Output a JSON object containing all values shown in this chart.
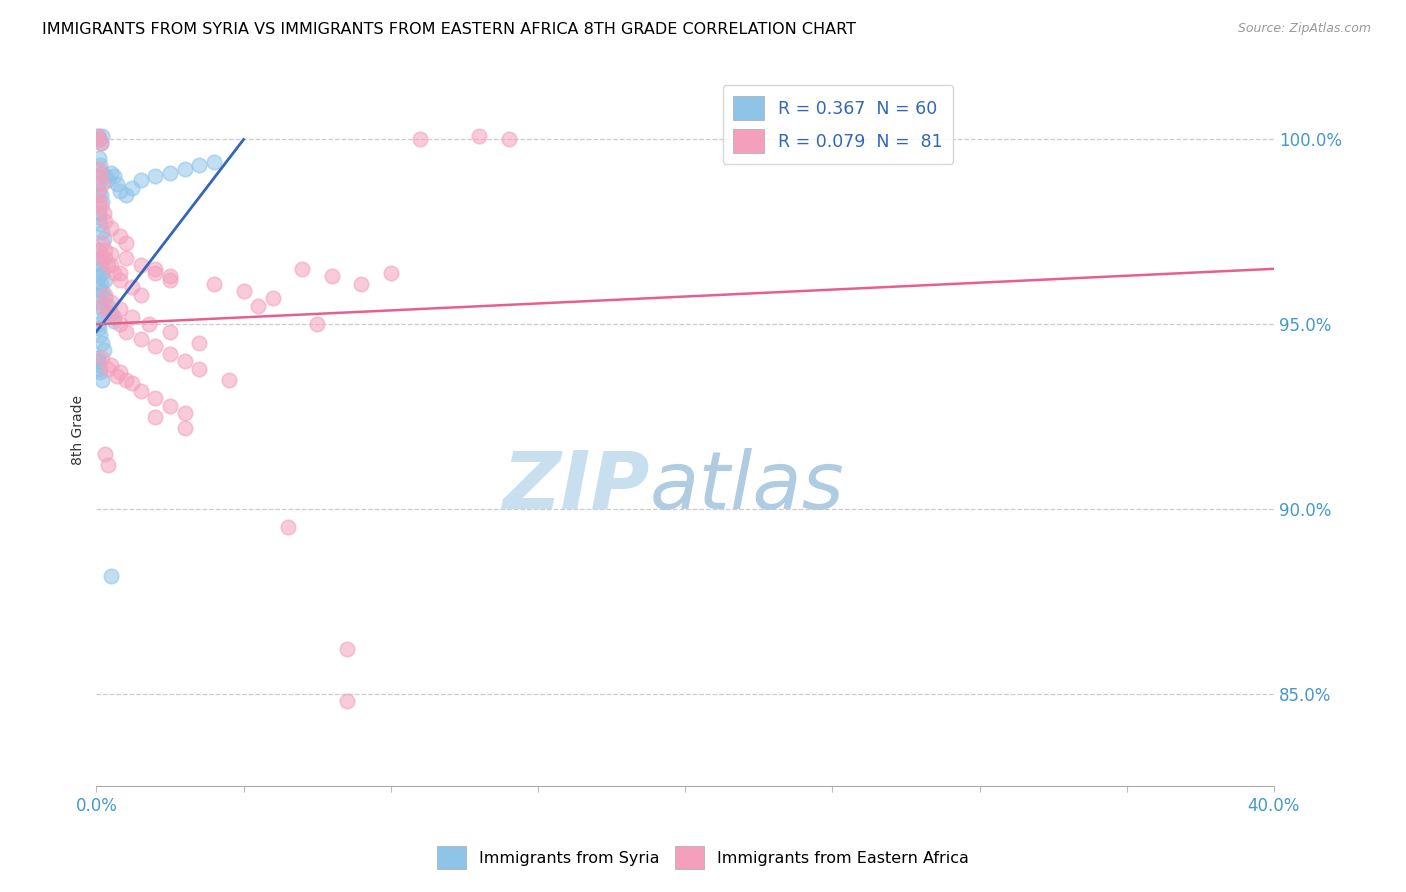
{
  "title": "IMMIGRANTS FROM SYRIA VS IMMIGRANTS FROM EASTERN AFRICA 8TH GRADE CORRELATION CHART",
  "source": "Source: ZipAtlas.com",
  "ylabel_label": "8th Grade",
  "right_yticks": [
    100.0,
    95.0,
    90.0,
    85.0
  ],
  "right_ytick_labels": [
    "100.0%",
    "95.0%",
    "90.0%",
    "85.0%"
  ],
  "xlim": [
    0.0,
    40.0
  ],
  "ylim": [
    82.5,
    101.8
  ],
  "legend_text_1": "R = 0.367  N = 60",
  "legend_text_2": "R = 0.079  N =  81",
  "syria_color": "#8ec4e8",
  "eastern_africa_color": "#f4a0bc",
  "trendline_syria_color": "#3366bb",
  "trendline_ea_color": "#e8608a",
  "watermark_zip": "ZIP",
  "watermark_atlas": "atlas",
  "watermark_color_zip": "#c8dff0",
  "watermark_color_atlas": "#b0cce8",
  "syria_points": [
    [
      0.05,
      100.1
    ],
    [
      0.1,
      100.0
    ],
    [
      0.15,
      99.9
    ],
    [
      0.2,
      100.1
    ],
    [
      0.08,
      99.5
    ],
    [
      0.12,
      99.3
    ],
    [
      0.18,
      99.1
    ],
    [
      0.05,
      98.8
    ],
    [
      0.1,
      98.6
    ],
    [
      0.15,
      98.5
    ],
    [
      0.2,
      98.3
    ],
    [
      0.08,
      97.9
    ],
    [
      0.12,
      97.7
    ],
    [
      0.18,
      97.5
    ],
    [
      0.25,
      97.3
    ],
    [
      0.05,
      97.0
    ],
    [
      0.1,
      96.8
    ],
    [
      0.15,
      96.6
    ],
    [
      0.2,
      96.4
    ],
    [
      0.3,
      96.2
    ],
    [
      0.05,
      96.0
    ],
    [
      0.08,
      95.8
    ],
    [
      0.12,
      95.6
    ],
    [
      0.18,
      95.4
    ],
    [
      0.25,
      95.2
    ],
    [
      0.05,
      95.0
    ],
    [
      0.08,
      94.9
    ],
    [
      0.12,
      94.7
    ],
    [
      0.18,
      94.5
    ],
    [
      0.25,
      94.3
    ],
    [
      0.05,
      94.1
    ],
    [
      0.08,
      93.9
    ],
    [
      0.12,
      93.7
    ],
    [
      0.18,
      93.5
    ],
    [
      0.3,
      99.0
    ],
    [
      0.4,
      98.9
    ],
    [
      0.5,
      99.1
    ],
    [
      0.6,
      99.0
    ],
    [
      0.7,
      98.8
    ],
    [
      0.8,
      98.6
    ],
    [
      1.0,
      98.5
    ],
    [
      1.2,
      98.7
    ],
    [
      1.5,
      98.9
    ],
    [
      2.0,
      99.0
    ],
    [
      2.5,
      99.1
    ],
    [
      3.0,
      99.2
    ],
    [
      3.5,
      99.3
    ],
    [
      4.0,
      99.4
    ],
    [
      0.05,
      96.5
    ],
    [
      0.1,
      96.3
    ],
    [
      0.15,
      96.1
    ],
    [
      0.2,
      95.9
    ],
    [
      0.3,
      95.7
    ],
    [
      0.4,
      95.5
    ],
    [
      0.5,
      95.3
    ],
    [
      0.6,
      95.1
    ],
    [
      0.05,
      94.0
    ],
    [
      0.1,
      93.8
    ],
    [
      0.5,
      88.2
    ],
    [
      0.08,
      98.0
    ]
  ],
  "eastern_africa_points": [
    [
      0.05,
      100.1
    ],
    [
      0.1,
      100.0
    ],
    [
      0.15,
      99.9
    ],
    [
      0.08,
      99.2
    ],
    [
      0.12,
      99.0
    ],
    [
      0.2,
      98.8
    ],
    [
      0.05,
      98.5
    ],
    [
      0.1,
      98.3
    ],
    [
      0.15,
      98.2
    ],
    [
      0.25,
      98.0
    ],
    [
      0.3,
      97.8
    ],
    [
      0.5,
      97.6
    ],
    [
      0.8,
      97.4
    ],
    [
      1.0,
      97.2
    ],
    [
      0.1,
      97.0
    ],
    [
      0.2,
      96.8
    ],
    [
      0.4,
      96.6
    ],
    [
      0.6,
      96.4
    ],
    [
      0.8,
      96.2
    ],
    [
      1.2,
      96.0
    ],
    [
      1.5,
      95.8
    ],
    [
      2.0,
      96.5
    ],
    [
      2.5,
      96.3
    ],
    [
      0.3,
      96.8
    ],
    [
      0.5,
      96.6
    ],
    [
      0.8,
      96.4
    ],
    [
      1.0,
      96.8
    ],
    [
      1.5,
      96.6
    ],
    [
      2.0,
      96.4
    ],
    [
      2.5,
      96.2
    ],
    [
      0.2,
      95.5
    ],
    [
      0.4,
      95.3
    ],
    [
      0.6,
      95.2
    ],
    [
      0.8,
      95.0
    ],
    [
      1.0,
      94.8
    ],
    [
      1.5,
      94.6
    ],
    [
      2.0,
      94.4
    ],
    [
      2.5,
      94.2
    ],
    [
      3.0,
      94.0
    ],
    [
      0.3,
      95.8
    ],
    [
      0.5,
      95.6
    ],
    [
      0.8,
      95.4
    ],
    [
      1.2,
      95.2
    ],
    [
      1.8,
      95.0
    ],
    [
      2.5,
      94.8
    ],
    [
      3.5,
      94.5
    ],
    [
      0.2,
      94.1
    ],
    [
      0.5,
      93.9
    ],
    [
      0.8,
      93.7
    ],
    [
      1.0,
      93.5
    ],
    [
      1.5,
      93.2
    ],
    [
      2.0,
      93.0
    ],
    [
      2.5,
      92.8
    ],
    [
      3.0,
      92.6
    ],
    [
      0.4,
      93.8
    ],
    [
      0.7,
      93.6
    ],
    [
      1.2,
      93.4
    ],
    [
      4.0,
      96.1
    ],
    [
      5.0,
      95.9
    ],
    [
      6.0,
      95.7
    ],
    [
      7.0,
      96.5
    ],
    [
      8.0,
      96.3
    ],
    [
      9.0,
      96.1
    ],
    [
      10.0,
      96.4
    ],
    [
      11.0,
      100.0
    ],
    [
      13.0,
      100.1
    ],
    [
      14.0,
      100.0
    ],
    [
      0.3,
      91.5
    ],
    [
      0.4,
      91.2
    ],
    [
      6.5,
      89.5
    ],
    [
      8.5,
      86.2
    ],
    [
      8.5,
      84.8
    ],
    [
      0.2,
      97.2
    ],
    [
      0.3,
      97.0
    ],
    [
      0.5,
      96.9
    ],
    [
      3.5,
      93.8
    ],
    [
      4.5,
      93.5
    ],
    [
      5.5,
      95.5
    ],
    [
      7.5,
      95.0
    ],
    [
      2.0,
      92.5
    ],
    [
      3.0,
      92.2
    ]
  ],
  "syria_trendline_x": [
    0.0,
    5.0
  ],
  "syria_trendline_y": [
    94.8,
    100.0
  ],
  "ea_trendline_x": [
    0.0,
    40.0
  ],
  "ea_trendline_y": [
    95.0,
    96.5
  ]
}
